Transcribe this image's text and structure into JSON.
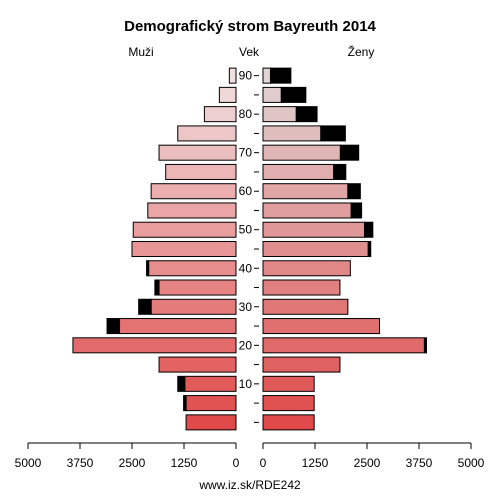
{
  "chart_data": {
    "type": "bar",
    "subtype": "population-pyramid",
    "title": "Demografický strom Bayreuth 2014",
    "left_label": "Muži",
    "center_label": "Vek",
    "right_label": "Ženy",
    "footer": "www.iz.sk/RDE242",
    "age_groups": [
      "0-4",
      "5-9",
      "10-14",
      "15-19",
      "20-24",
      "25-29",
      "30-34",
      "35-39",
      "40-44",
      "45-49",
      "50-54",
      "55-59",
      "60-64",
      "65-69",
      "70-74",
      "75-79",
      "80-84",
      "85-89",
      "90+"
    ],
    "age_tick_values": [
      10,
      20,
      30,
      40,
      50,
      60,
      70,
      80,
      90
    ],
    "age_tick_labels": [
      "10",
      "20",
      "30",
      "40",
      "50",
      "60",
      "70",
      "80",
      "90"
    ],
    "x_ticks": [
      5000,
      3750,
      2500,
      1250,
      0
    ],
    "x_tick_labels_left": [
      "5000",
      "3750",
      "2500",
      "1250",
      "0"
    ],
    "x_tick_labels_right": [
      "0",
      "1250",
      "2500",
      "3750",
      "5000"
    ],
    "xlim": [
      0,
      5000
    ],
    "series": [
      {
        "name": "Muži",
        "side": "left",
        "base_values": [
          1200,
          1200,
          1230,
          1850,
          3920,
          2800,
          2040,
          1850,
          2100,
          2500,
          2470,
          2120,
          2040,
          1690,
          1850,
          1400,
          760,
          400,
          160
        ],
        "excess_values": [
          0,
          60,
          170,
          0,
          0,
          300,
          300,
          100,
          50,
          0,
          0,
          0,
          0,
          0,
          0,
          0,
          0,
          0,
          0
        ]
      },
      {
        "name": "Ženy",
        "side": "right",
        "base_values": [
          1230,
          1230,
          1230,
          1850,
          3880,
          2800,
          2040,
          1850,
          2100,
          2530,
          2440,
          2120,
          2040,
          1700,
          1860,
          1390,
          800,
          440,
          180
        ],
        "excess_values": [
          0,
          0,
          0,
          0,
          50,
          0,
          0,
          0,
          0,
          60,
          200,
          250,
          300,
          290,
          440,
          590,
          500,
          590,
          490
        ]
      }
    ],
    "colors": {
      "male_young": "#e04a4a",
      "male_old": "#f0e0e0",
      "female_young": "#e04a4a",
      "female_old": "#e0d4d4",
      "excess": "#000000"
    }
  }
}
